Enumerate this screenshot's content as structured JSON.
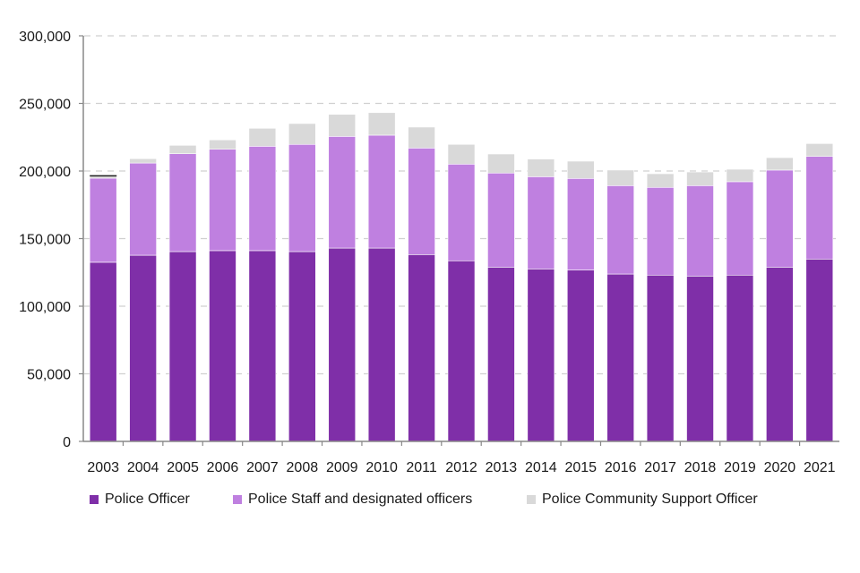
{
  "chart_data": {
    "type": "bar",
    "stacked": true,
    "title": "",
    "xlabel": "",
    "ylabel": "",
    "ylim": [
      0,
      300000
    ],
    "yticks": [
      0,
      50000,
      100000,
      150000,
      200000,
      250000,
      300000
    ],
    "ytick_labels": [
      "0",
      "50,000",
      "100,000",
      "150,000",
      "200,000",
      "250,000",
      "300,000"
    ],
    "grid": true,
    "legend_position": "bottom",
    "categories": [
      "2003",
      "2004",
      "2005",
      "2006",
      "2007",
      "2008",
      "2009",
      "2010",
      "2011",
      "2012",
      "2013",
      "2014",
      "2015",
      "2016",
      "2017",
      "2018",
      "2019",
      "2020",
      "2021"
    ],
    "series": [
      {
        "name": "Police Officer",
        "color": "#7F2FA8",
        "values": [
          132500,
          137700,
          140400,
          141100,
          141100,
          140400,
          143000,
          143000,
          138200,
          133600,
          128900,
          127600,
          126700,
          123800,
          123000,
          122300,
          123000,
          128900,
          134900
        ]
      },
      {
        "name": "Police Staff and designated officers",
        "color": "#BF80E0",
        "values": [
          62200,
          68200,
          72400,
          75000,
          77200,
          79300,
          82600,
          83500,
          78800,
          71500,
          69600,
          68200,
          67800,
          65400,
          64900,
          66900,
          69100,
          71800,
          75900
        ]
      },
      {
        "name": "Police Community Support Officer",
        "color": "#D9D9D9",
        "values": [
          1700,
          3200,
          6200,
          6900,
          13300,
          15400,
          16300,
          16700,
          15500,
          14600,
          14100,
          13000,
          12800,
          11500,
          10100,
          10100,
          9200,
          9200,
          9500
        ]
      }
    ]
  }
}
